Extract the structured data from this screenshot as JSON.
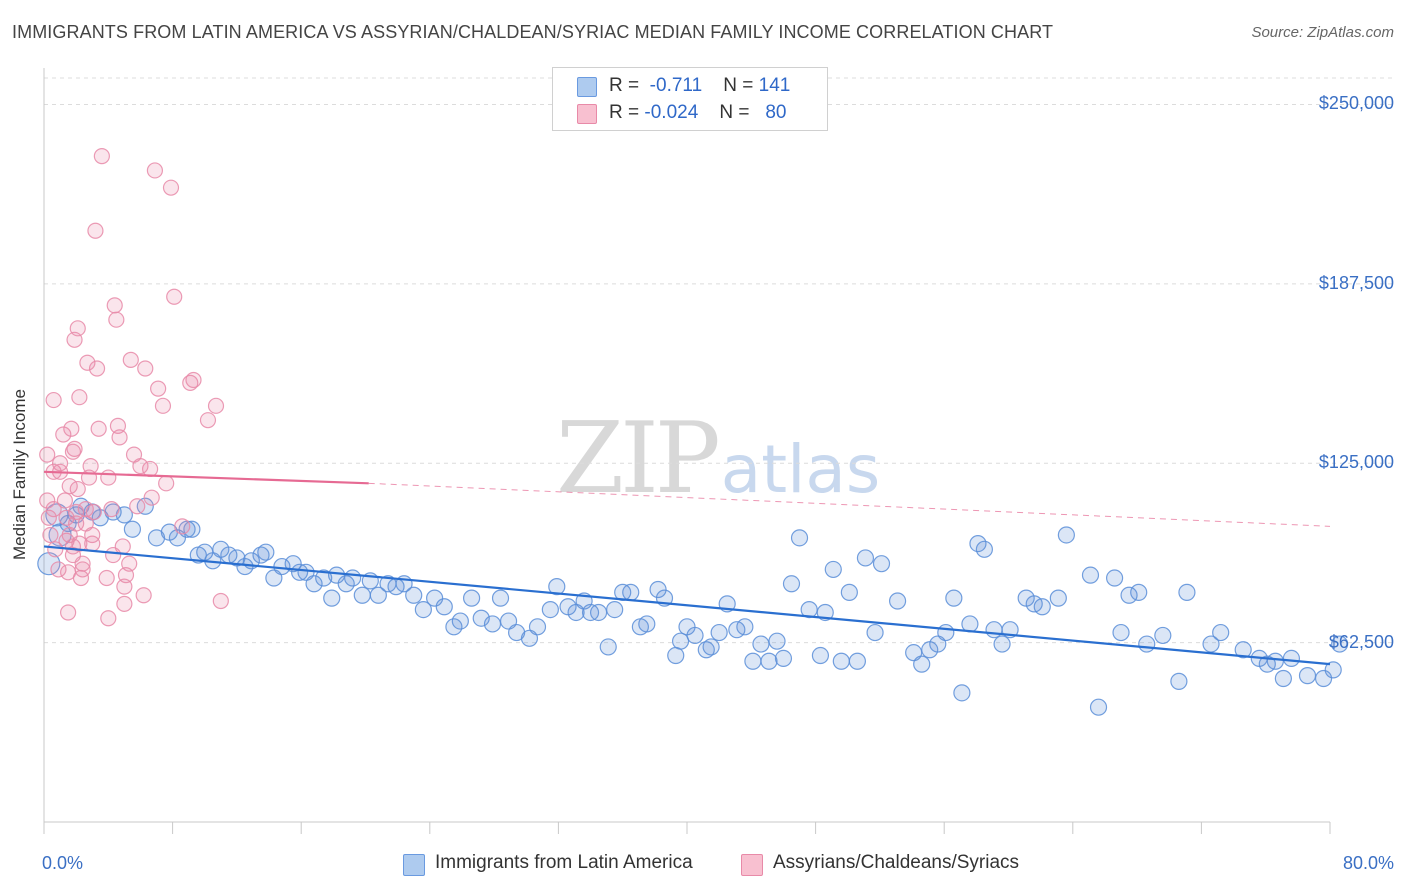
{
  "title": "IMMIGRANTS FROM LATIN AMERICA VS ASSYRIAN/CHALDEAN/SYRIAC MEDIAN FAMILY INCOME CORRELATION CHART",
  "source": "Source: ZipAtlas.com",
  "watermark": {
    "zip": "ZIP",
    "atlas": "atlas"
  },
  "legend": {
    "r_label": "R =",
    "n_label": "N =",
    "rows": [
      {
        "r": "-0.711",
        "n": "141",
        "color": "#aecbef",
        "border": "#6a9ae0"
      },
      {
        "r": "-0.024",
        "n": "80",
        "color": "#f8c0d0",
        "border": "#e88aa8"
      }
    ]
  },
  "colors": {
    "blue": "#5b8ed8",
    "pink": "#e889a8",
    "blue_line": "#2a6fd0",
    "pink_line": "#e66a93",
    "axis_text": "#3a6fc4"
  },
  "chart_data": {
    "type": "scatter",
    "xlabel": "",
    "ylabel": "Median Family Income",
    "xlim": [
      0,
      80
    ],
    "ylim": [
      0,
      262000
    ],
    "x_tick_labels": {
      "min": "0.0%",
      "max": "80.0%"
    },
    "y_ticks": [
      {
        "value": 62500,
        "label": "$62,500"
      },
      {
        "value": 125000,
        "label": "$125,000"
      },
      {
        "value": 187500,
        "label": "$187,500"
      },
      {
        "value": 250000,
        "label": "$250,000"
      }
    ],
    "grid": "horizontal-dashed",
    "legend_position": "top-center",
    "series": [
      {
        "name": "Immigrants from Latin America",
        "color": "#5b8ed8",
        "trend": {
          "x": [
            0,
            80
          ],
          "y": [
            96000,
            55000
          ],
          "style": "solid"
        },
        "points": [
          [
            0.3,
            90000
          ],
          [
            0.8,
            107000
          ],
          [
            1.0,
            100000
          ],
          [
            1.5,
            104000
          ],
          [
            2.0,
            107000
          ],
          [
            2.3,
            110000
          ],
          [
            3.0,
            108000
          ],
          [
            3.5,
            106000
          ],
          [
            4.3,
            108000
          ],
          [
            5.0,
            107000
          ],
          [
            5.5,
            102000
          ],
          [
            6.3,
            110000
          ],
          [
            7.0,
            99000
          ],
          [
            7.8,
            101000
          ],
          [
            8.3,
            99000
          ],
          [
            8.9,
            102000
          ],
          [
            9.2,
            102000
          ],
          [
            9.6,
            93000
          ],
          [
            10.0,
            94000
          ],
          [
            10.5,
            91000
          ],
          [
            11.0,
            95000
          ],
          [
            11.5,
            93000
          ],
          [
            12.0,
            92000
          ],
          [
            12.5,
            89000
          ],
          [
            12.9,
            91000
          ],
          [
            13.5,
            93000
          ],
          [
            13.8,
            94000
          ],
          [
            14.3,
            85000
          ],
          [
            14.8,
            89000
          ],
          [
            15.5,
            90000
          ],
          [
            15.9,
            87000
          ],
          [
            16.3,
            87000
          ],
          [
            16.8,
            83000
          ],
          [
            17.4,
            85000
          ],
          [
            17.9,
            78000
          ],
          [
            18.2,
            86000
          ],
          [
            18.8,
            83000
          ],
          [
            19.2,
            85000
          ],
          [
            19.8,
            79000
          ],
          [
            20.3,
            84000
          ],
          [
            20.8,
            79000
          ],
          [
            21.4,
            83000
          ],
          [
            21.9,
            82000
          ],
          [
            22.4,
            83000
          ],
          [
            23.0,
            79000
          ],
          [
            23.6,
            74000
          ],
          [
            24.3,
            78000
          ],
          [
            24.9,
            75000
          ],
          [
            25.5,
            68000
          ],
          [
            25.9,
            70000
          ],
          [
            26.6,
            78000
          ],
          [
            27.2,
            71000
          ],
          [
            27.9,
            69000
          ],
          [
            28.4,
            78000
          ],
          [
            28.9,
            70000
          ],
          [
            29.4,
            66000
          ],
          [
            30.2,
            64000
          ],
          [
            30.7,
            68000
          ],
          [
            31.5,
            74000
          ],
          [
            31.9,
            82000
          ],
          [
            32.6,
            75000
          ],
          [
            33.1,
            73000
          ],
          [
            33.6,
            77000
          ],
          [
            34.0,
            73000
          ],
          [
            34.5,
            73000
          ],
          [
            35.1,
            61000
          ],
          [
            35.5,
            74000
          ],
          [
            36.0,
            80000
          ],
          [
            36.5,
            80000
          ],
          [
            37.1,
            68000
          ],
          [
            37.5,
            69000
          ],
          [
            38.2,
            81000
          ],
          [
            38.6,
            78000
          ],
          [
            39.3,
            58000
          ],
          [
            39.6,
            63000
          ],
          [
            40.0,
            68000
          ],
          [
            40.5,
            65000
          ],
          [
            41.2,
            60000
          ],
          [
            41.5,
            61000
          ],
          [
            42.0,
            66000
          ],
          [
            42.5,
            76000
          ],
          [
            43.1,
            67000
          ],
          [
            43.6,
            68000
          ],
          [
            44.1,
            56000
          ],
          [
            44.6,
            62000
          ],
          [
            45.1,
            56000
          ],
          [
            45.6,
            63000
          ],
          [
            46.0,
            57000
          ],
          [
            46.5,
            83000
          ],
          [
            47.0,
            99000
          ],
          [
            47.6,
            74000
          ],
          [
            48.3,
            58000
          ],
          [
            48.6,
            73000
          ],
          [
            49.1,
            88000
          ],
          [
            49.6,
            56000
          ],
          [
            50.1,
            80000
          ],
          [
            50.6,
            56000
          ],
          [
            51.1,
            92000
          ],
          [
            51.7,
            66000
          ],
          [
            52.1,
            90000
          ],
          [
            53.1,
            77000
          ],
          [
            54.1,
            59000
          ],
          [
            54.6,
            55000
          ],
          [
            55.1,
            60000
          ],
          [
            55.6,
            62000
          ],
          [
            56.1,
            66000
          ],
          [
            56.6,
            78000
          ],
          [
            57.1,
            45000
          ],
          [
            57.6,
            69000
          ],
          [
            58.1,
            97000
          ],
          [
            59.1,
            67000
          ],
          [
            59.6,
            62000
          ],
          [
            60.1,
            67000
          ],
          [
            61.1,
            78000
          ],
          [
            61.6,
            76000
          ],
          [
            62.1,
            75000
          ],
          [
            63.1,
            78000
          ],
          [
            63.6,
            100000
          ],
          [
            65.1,
            86000
          ],
          [
            65.6,
            40000
          ],
          [
            66.6,
            85000
          ],
          [
            67.5,
            79000
          ],
          [
            68.1,
            80000
          ],
          [
            68.6,
            62000
          ],
          [
            69.6,
            65000
          ],
          [
            70.6,
            49000
          ],
          [
            71.1,
            80000
          ],
          [
            72.6,
            62000
          ],
          [
            73.2,
            66000
          ],
          [
            74.6,
            60000
          ],
          [
            75.6,
            57000
          ],
          [
            76.1,
            55000
          ],
          [
            76.6,
            56000
          ],
          [
            77.1,
            50000
          ],
          [
            77.6,
            57000
          ],
          [
            78.6,
            51000
          ],
          [
            79.6,
            50000
          ],
          [
            80.2,
            53000
          ],
          [
            80.6,
            62000
          ],
          [
            58.5,
            95000
          ],
          [
            67.0,
            66000
          ]
        ]
      },
      {
        "name": "Assyrians/Chaldeans/Syriacs",
        "color": "#e889a8",
        "trend": {
          "x": [
            0,
            20.2,
            80
          ],
          "y": [
            122000,
            118000,
            103000
          ],
          "style": "solid-then-dashed",
          "solid_until": 20.2
        },
        "points": [
          [
            0.2,
            128000
          ],
          [
            0.2,
            112000
          ],
          [
            0.3,
            106000
          ],
          [
            0.4,
            100000
          ],
          [
            0.6,
            147000
          ],
          [
            0.6,
            122000
          ],
          [
            0.6,
            109000
          ],
          [
            0.7,
            95000
          ],
          [
            0.9,
            88000
          ],
          [
            1.0,
            125000
          ],
          [
            1.0,
            122000
          ],
          [
            1.2,
            135000
          ],
          [
            1.3,
            112000
          ],
          [
            1.4,
            106000
          ],
          [
            1.4,
            98000
          ],
          [
            1.5,
            87000
          ],
          [
            1.5,
            73000
          ],
          [
            1.6,
            117000
          ],
          [
            1.6,
            100000
          ],
          [
            1.7,
            137000
          ],
          [
            1.8,
            129000
          ],
          [
            1.8,
            96000
          ],
          [
            1.8,
            93000
          ],
          [
            1.9,
            168000
          ],
          [
            1.9,
            130000
          ],
          [
            2.0,
            108000
          ],
          [
            2.0,
            104000
          ],
          [
            2.1,
            172000
          ],
          [
            2.1,
            116000
          ],
          [
            2.2,
            148000
          ],
          [
            2.2,
            97000
          ],
          [
            2.3,
            85000
          ],
          [
            2.4,
            90000
          ],
          [
            2.4,
            88000
          ],
          [
            2.6,
            109000
          ],
          [
            2.6,
            104000
          ],
          [
            2.7,
            160000
          ],
          [
            2.8,
            120000
          ],
          [
            2.9,
            124000
          ],
          [
            3.0,
            100000
          ],
          [
            3.0,
            97000
          ],
          [
            3.1,
            108000
          ],
          [
            3.2,
            206000
          ],
          [
            3.3,
            158000
          ],
          [
            3.4,
            137000
          ],
          [
            3.6,
            232000
          ],
          [
            3.9,
            85000
          ],
          [
            4.0,
            71000
          ],
          [
            4.0,
            120000
          ],
          [
            4.2,
            109000
          ],
          [
            4.3,
            93000
          ],
          [
            4.4,
            180000
          ],
          [
            4.5,
            175000
          ],
          [
            4.6,
            138000
          ],
          [
            4.7,
            134000
          ],
          [
            4.9,
            96000
          ],
          [
            5.0,
            82000
          ],
          [
            5.0,
            76000
          ],
          [
            5.1,
            86000
          ],
          [
            5.3,
            90000
          ],
          [
            5.4,
            161000
          ],
          [
            5.6,
            128000
          ],
          [
            5.8,
            110000
          ],
          [
            6.0,
            124000
          ],
          [
            6.2,
            79000
          ],
          [
            6.3,
            158000
          ],
          [
            6.6,
            123000
          ],
          [
            6.7,
            113000
          ],
          [
            6.9,
            227000
          ],
          [
            7.1,
            151000
          ],
          [
            7.4,
            145000
          ],
          [
            7.6,
            118000
          ],
          [
            7.9,
            221000
          ],
          [
            8.1,
            183000
          ],
          [
            8.6,
            103000
          ],
          [
            9.1,
            153000
          ],
          [
            9.3,
            154000
          ],
          [
            10.2,
            140000
          ],
          [
            10.7,
            145000
          ],
          [
            11.0,
            77000
          ]
        ]
      }
    ]
  },
  "bottom_legend": [
    "Immigrants from Latin America",
    "Assyrians/Chaldeans/Syriacs"
  ]
}
